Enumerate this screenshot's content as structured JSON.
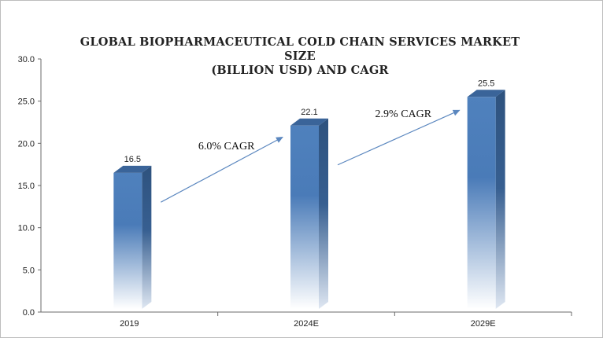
{
  "chart_data": {
    "type": "bar",
    "title_line1": "GLOBAL BIOPHARMACEUTICAL COLD CHAIN SERVICES MARKET SIZE",
    "title_line2": "(BILLION USD) AND CAGR",
    "categories": [
      "2019",
      "2024E",
      "2029E"
    ],
    "values": [
      16.5,
      22.1,
      25.5
    ],
    "data_labels": [
      "16.5",
      "22.1",
      "25.5"
    ],
    "ylim": [
      0,
      30
    ],
    "yticks": [
      "0.0",
      "5.0",
      "10.0",
      "15.0",
      "20.0",
      "25.0",
      "30.0"
    ],
    "grid": false,
    "annotations": [
      {
        "text": "6.0% CAGR",
        "from": "2019",
        "to": "2024E"
      },
      {
        "text": "2.9% CAGR",
        "from": "2024E",
        "to": "2029E"
      }
    ],
    "colors": {
      "bar_front": "#4f81bd",
      "bar_side": "#2e527e",
      "bar_top": "#3a6499",
      "arrow": "#5b87bf",
      "axis": "#6b6b6b"
    }
  }
}
